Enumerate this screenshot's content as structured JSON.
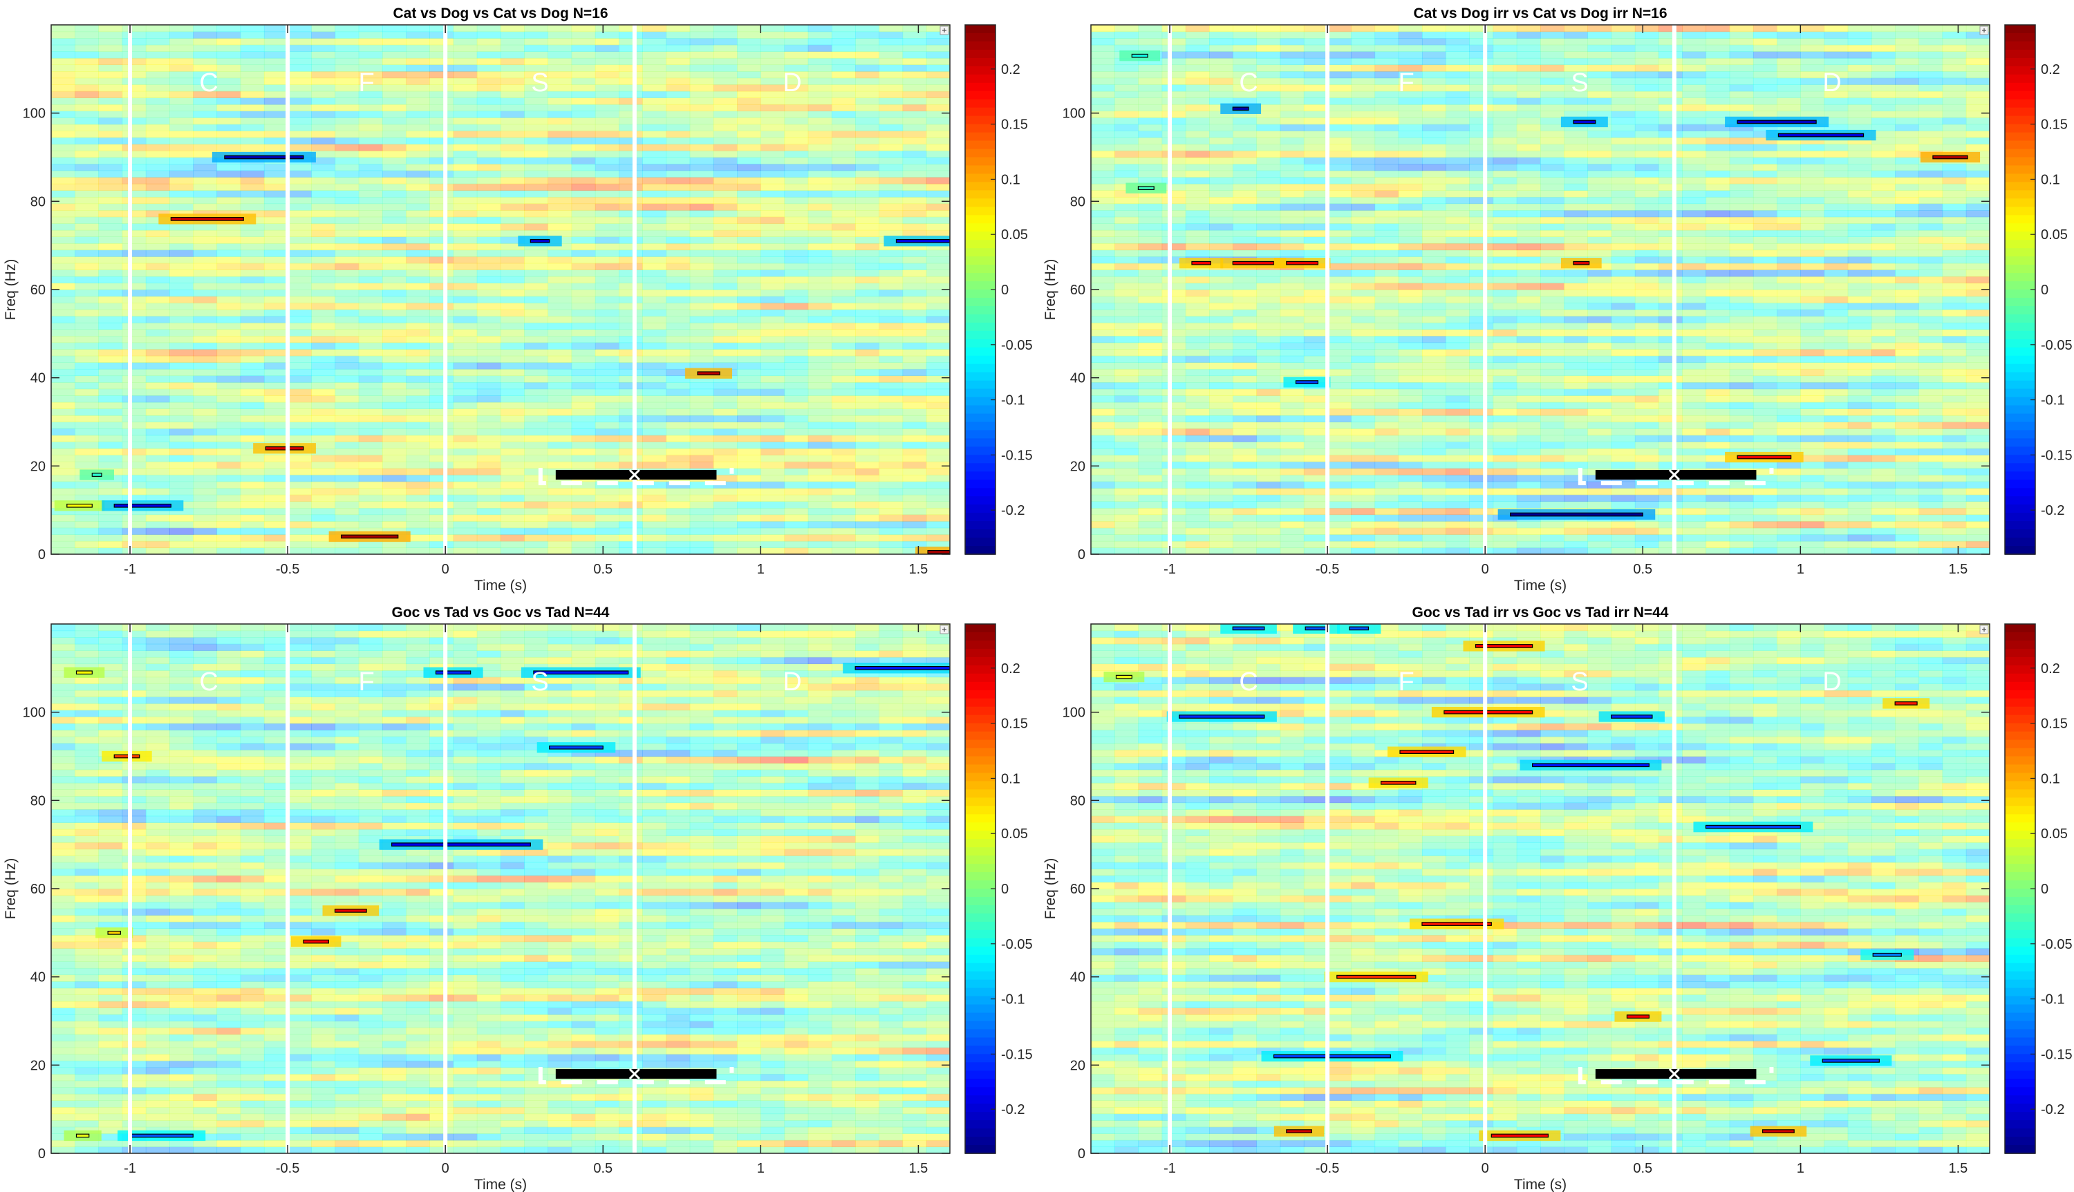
{
  "figure": {
    "colorbar_ticks": [
      0.2,
      0.15,
      0.1,
      0.05,
      0,
      -0.05,
      -0.1,
      -0.15,
      -0.2
    ],
    "colorbar_labels": [
      "0.2",
      "0.15",
      "0.1",
      "0.05",
      "0",
      "-0.05",
      "-0.1",
      "-0.15",
      "-0.2"
    ],
    "colormap": "jet",
    "clim": [
      -0.24,
      0.24
    ],
    "background_color": "#ffffff",
    "epoch_line_color": "#ffffff",
    "phase_labels": [
      "C",
      "F",
      "S",
      "D"
    ],
    "phase_label_times": [
      -0.75,
      -0.25,
      0.3,
      1.1
    ],
    "epoch_boundaries": [
      -1,
      -0.5,
      0,
      0.6
    ],
    "reaction_marker": {
      "x_min": 0.35,
      "x_max": 0.86,
      "center": 0.6,
      "freq": 18
    },
    "corner_button_icon": "plus-icon"
  },
  "chart_data": [
    {
      "type": "heatmap",
      "title": "Cat vs Dog vs Cat vs Dog N=16",
      "xlabel": "Time (s)",
      "ylabel": "Freq (Hz)",
      "xlim": [
        -1.25,
        1.6
      ],
      "ylim": [
        0,
        120
      ],
      "xticks": [
        -1,
        -0.5,
        0,
        0.5,
        1,
        1.5
      ],
      "xtick_labels": [
        "-1",
        "-0.5",
        "0",
        "0.5",
        "1",
        "1.5"
      ],
      "yticks": [
        0,
        20,
        40,
        60,
        80,
        100
      ],
      "ytick_labels": [
        "0",
        "20",
        "40",
        "60",
        "80",
        "100"
      ],
      "seed": 11,
      "significant_clusters": [
        {
          "freq": 90,
          "t0": -0.7,
          "t1": -0.45,
          "value": -0.22
        },
        {
          "freq": 76,
          "t0": -0.87,
          "t1": -0.64,
          "value": 0.2
        },
        {
          "freq": 71,
          "t0": 0.27,
          "t1": 0.33,
          "value": -0.2
        },
        {
          "freq": 71,
          "t0": 1.43,
          "t1": 1.6,
          "value": -0.19
        },
        {
          "freq": 41,
          "t0": 0.8,
          "t1": 0.87,
          "value": 0.21
        },
        {
          "freq": 24,
          "t0": -0.57,
          "t1": -0.45,
          "value": 0.2
        },
        {
          "freq": 18,
          "t0": -1.12,
          "t1": -1.09,
          "value": -0.04
        },
        {
          "freq": 11,
          "t0": -1.2,
          "t1": -1.12,
          "value": 0.06
        },
        {
          "freq": 11,
          "t0": -1.05,
          "t1": -0.87,
          "value": -0.19
        },
        {
          "freq": 4,
          "t0": -0.33,
          "t1": -0.15,
          "value": 0.22
        },
        {
          "freq": 0.5,
          "t0": 1.53,
          "t1": 1.6,
          "value": 0.22
        }
      ]
    },
    {
      "type": "heatmap",
      "title": "Cat vs Dog irr vs Cat vs Dog irr N=16",
      "xlabel": "Time (s)",
      "ylabel": "Freq (Hz)",
      "xlim": [
        -1.25,
        1.6
      ],
      "ylim": [
        0,
        120
      ],
      "xticks": [
        -1,
        -0.5,
        0,
        0.5,
        1,
        1.5
      ],
      "xtick_labels": [
        "-1",
        "-0.5",
        "0",
        "0.5",
        "1",
        "1.5"
      ],
      "yticks": [
        0,
        20,
        40,
        60,
        80,
        100
      ],
      "ytick_labels": [
        "0",
        "20",
        "40",
        "60",
        "80",
        "100"
      ],
      "seed": 23,
      "significant_clusters": [
        {
          "freq": 113,
          "t0": -1.12,
          "t1": -1.07,
          "value": -0.05
        },
        {
          "freq": 101,
          "t0": -0.8,
          "t1": -0.75,
          "value": -0.22
        },
        {
          "freq": 98,
          "t0": 0.28,
          "t1": 0.35,
          "value": -0.2
        },
        {
          "freq": 98,
          "t0": 0.8,
          "t1": 1.05,
          "value": -0.21
        },
        {
          "freq": 95,
          "t0": 0.93,
          "t1": 1.2,
          "value": -0.2
        },
        {
          "freq": 90,
          "t0": 1.42,
          "t1": 1.53,
          "value": 0.22
        },
        {
          "freq": 83,
          "t0": -1.1,
          "t1": -1.05,
          "value": -0.03
        },
        {
          "freq": 66,
          "t0": -0.93,
          "t1": -0.87,
          "value": 0.18
        },
        {
          "freq": 66,
          "t0": -0.8,
          "t1": -0.67,
          "value": 0.19
        },
        {
          "freq": 66,
          "t0": -0.63,
          "t1": -0.53,
          "value": 0.19
        },
        {
          "freq": 66,
          "t0": 0.28,
          "t1": 0.33,
          "value": 0.2
        },
        {
          "freq": 39,
          "t0": -0.6,
          "t1": -0.53,
          "value": -0.15
        },
        {
          "freq": 22,
          "t0": 0.8,
          "t1": 0.97,
          "value": 0.19
        },
        {
          "freq": 9,
          "t0": 0.08,
          "t1": 0.5,
          "value": -0.23
        }
      ]
    },
    {
      "type": "heatmap",
      "title": "Goc vs Tad vs Goc vs Tad N=44",
      "xlabel": "Time (s)",
      "ylabel": "Freq (Hz)",
      "xlim": [
        -1.25,
        1.6
      ],
      "ylim": [
        0,
        120
      ],
      "xticks": [
        -1,
        -0.5,
        0,
        0.5,
        1,
        1.5
      ],
      "xtick_labels": [
        "-1",
        "-0.5",
        "0",
        "0.5",
        "1",
        "1.5"
      ],
      "yticks": [
        0,
        20,
        40,
        60,
        80,
        100
      ],
      "ytick_labels": [
        "0",
        "20",
        "40",
        "60",
        "80",
        "100"
      ],
      "seed": 37,
      "significant_clusters": [
        {
          "freq": 109,
          "t0": -1.17,
          "t1": -1.12,
          "value": 0.06
        },
        {
          "freq": 109,
          "t0": -0.03,
          "t1": 0.08,
          "value": -0.16
        },
        {
          "freq": 109,
          "t0": 0.28,
          "t1": 0.58,
          "value": -0.17
        },
        {
          "freq": 110,
          "t0": 1.3,
          "t1": 1.6,
          "value": -0.17
        },
        {
          "freq": 92,
          "t0": 0.33,
          "t1": 0.5,
          "value": -0.15
        },
        {
          "freq": 90,
          "t0": -1.05,
          "t1": -0.97,
          "value": 0.15
        },
        {
          "freq": 70,
          "t0": -0.17,
          "t1": 0.27,
          "value": -0.19
        },
        {
          "freq": 55,
          "t0": -0.35,
          "t1": -0.25,
          "value": 0.19
        },
        {
          "freq": 50,
          "t0": -1.07,
          "t1": -1.03,
          "value": 0.08
        },
        {
          "freq": 48,
          "t0": -0.45,
          "t1": -0.37,
          "value": 0.18
        },
        {
          "freq": 4,
          "t0": -1.17,
          "t1": -1.13,
          "value": 0.05
        },
        {
          "freq": 4,
          "t0": -1.0,
          "t1": -0.8,
          "value": -0.14
        }
      ]
    },
    {
      "type": "heatmap",
      "title": "Goc vs Tad irr vs Goc vs Tad irr N=44",
      "xlabel": "Time (s)",
      "ylabel": "Freq (Hz)",
      "xlim": [
        -1.25,
        1.6
      ],
      "ylim": [
        0,
        120
      ],
      "xticks": [
        -1,
        -0.5,
        0,
        0.5,
        1,
        1.5
      ],
      "xtick_labels": [
        "-1",
        "-0.5",
        "0",
        "0.5",
        "1",
        "1.5"
      ],
      "yticks": [
        0,
        20,
        40,
        60,
        80,
        100
      ],
      "ytick_labels": [
        "0",
        "20",
        "40",
        "60",
        "80",
        "100"
      ],
      "seed": 53,
      "significant_clusters": [
        {
          "freq": 119,
          "t0": -0.8,
          "t1": -0.7,
          "value": -0.14
        },
        {
          "freq": 119,
          "t0": -0.57,
          "t1": -0.5,
          "value": -0.14
        },
        {
          "freq": 119,
          "t0": -0.43,
          "t1": -0.37,
          "value": -0.14
        },
        {
          "freq": 115,
          "t0": -0.03,
          "t1": 0.15,
          "value": 0.18
        },
        {
          "freq": 108,
          "t0": -1.17,
          "t1": -1.12,
          "value": 0.05
        },
        {
          "freq": 102,
          "t0": 1.3,
          "t1": 1.37,
          "value": 0.17
        },
        {
          "freq": 100,
          "t0": -0.13,
          "t1": 0.15,
          "value": 0.18
        },
        {
          "freq": 99,
          "t0": -0.97,
          "t1": -0.7,
          "value": -0.16
        },
        {
          "freq": 99,
          "t0": 0.4,
          "t1": 0.53,
          "value": -0.16
        },
        {
          "freq": 91,
          "t0": -0.27,
          "t1": -0.1,
          "value": 0.17
        },
        {
          "freq": 88,
          "t0": 0.15,
          "t1": 0.52,
          "value": -0.17
        },
        {
          "freq": 84,
          "t0": -0.33,
          "t1": -0.22,
          "value": 0.16
        },
        {
          "freq": 74,
          "t0": 0.7,
          "t1": 1.0,
          "value": -0.15
        },
        {
          "freq": 52,
          "t0": -0.2,
          "t1": 0.02,
          "value": 0.17
        },
        {
          "freq": 45,
          "t0": 1.23,
          "t1": 1.32,
          "value": -0.12
        },
        {
          "freq": 40,
          "t0": -0.47,
          "t1": -0.22,
          "value": 0.16
        },
        {
          "freq": 31,
          "t0": 0.45,
          "t1": 0.52,
          "value": 0.18
        },
        {
          "freq": 22,
          "t0": -0.67,
          "t1": -0.3,
          "value": -0.15
        },
        {
          "freq": 21,
          "t0": 1.07,
          "t1": 1.25,
          "value": -0.15
        },
        {
          "freq": 5,
          "t0": -0.63,
          "t1": -0.55,
          "value": 0.2
        },
        {
          "freq": 5,
          "t0": 0.88,
          "t1": 0.98,
          "value": 0.2
        },
        {
          "freq": 4,
          "t0": 0.02,
          "t1": 0.2,
          "value": 0.18
        }
      ]
    }
  ]
}
